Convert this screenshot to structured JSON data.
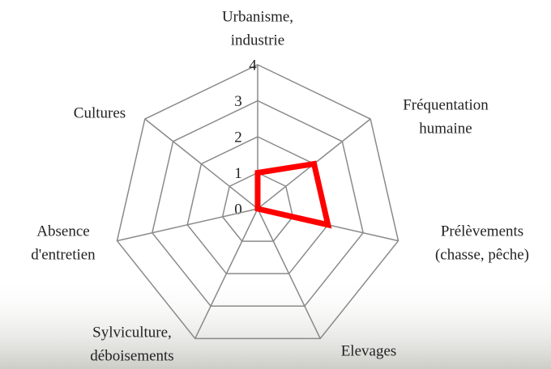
{
  "chart_data": {
    "type": "radar",
    "categories": [
      [
        "Urbanisme,",
        "industrie"
      ],
      [
        "Fréquentation",
        "humaine"
      ],
      [
        "Prélèvements",
        "(chasse, pêche)"
      ],
      [
        "Elevages"
      ],
      [
        "Sylviculture,",
        "déboisements"
      ],
      [
        "Absence",
        "d'entretien"
      ],
      [
        "Cultures"
      ]
    ],
    "values": [
      1,
      2,
      2,
      0,
      0,
      0,
      0
    ],
    "color": "#ff0000",
    "rlim": [
      0,
      4
    ],
    "rticks": [
      0,
      1,
      2,
      3,
      4
    ],
    "grid": true
  }
}
